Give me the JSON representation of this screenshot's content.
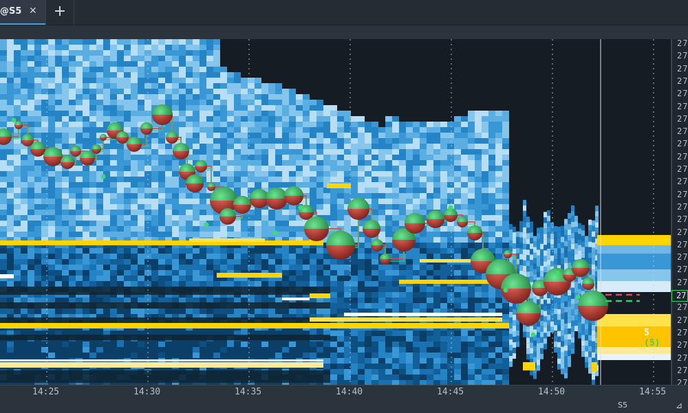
{
  "tabs": [
    {
      "label": "@S5",
      "close": "✕"
    }
  ],
  "add_tab": "+",
  "x_axis": {
    "ticks": [
      "14:25",
      "14:30",
      "14:35",
      "14:40",
      "14:45",
      "14:50",
      "14:55"
    ],
    "period": "S5"
  },
  "y_axis": {
    "tick_label": "27",
    "tick_count": 28,
    "current_price_label": "27"
  },
  "last_trade": {
    "size": "5",
    "count": "(5)"
  },
  "scroll_icon": "scroll-corner-icon",
  "colors": {
    "background": "#151c24",
    "heat_low": "#0f4f80",
    "heat_mid": "#3a9ad6",
    "heat_high": "#ffffff",
    "heat_max": "#ffd400",
    "bubble_buy": "#2bb35a",
    "bubble_sell": "#c23b32",
    "vwap_buy": "#35d06a",
    "vwap_sell": "#e04848",
    "tab_accent": "#3fa1e6"
  }
}
